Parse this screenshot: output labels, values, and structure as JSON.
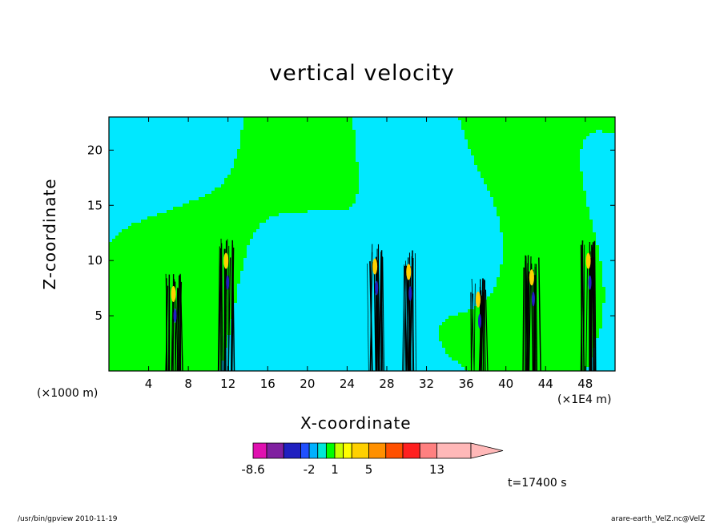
{
  "chart_data": {
    "type": "heatmap",
    "title": "vertical velocity",
    "xlabel": "X-coordinate",
    "ylabel": "Z-coordinate",
    "x_unit_left": "(×1000 m)",
    "x_unit_right": "(×1E4 m)",
    "xlim": [
      0,
      51
    ],
    "ylim": [
      0,
      23
    ],
    "xticks": [
      4,
      8,
      12,
      16,
      20,
      24,
      28,
      32,
      36,
      40,
      44,
      48
    ],
    "yticks": [
      5,
      10,
      15,
      20
    ],
    "time_label": "t=17400 s",
    "colorbar": {
      "levels": [
        -8.6,
        -7,
        -5,
        -3,
        -2,
        -1,
        0,
        1,
        2,
        3,
        5,
        7,
        9,
        11,
        13,
        17
      ],
      "colors": [
        "#e010b0",
        "#8020a0",
        "#2020c0",
        "#2050ff",
        "#00b0ff",
        "#00e8d8",
        "#00ff00",
        "#c8ff00",
        "#ffff00",
        "#ffd000",
        "#ff9000",
        "#ff5000",
        "#ff2020",
        "#ff8080",
        "#ffb8b8"
      ],
      "tick_labels": [
        {
          "value": -8.6,
          "text": "-8.6"
        },
        {
          "value": -2,
          "text": "-2"
        },
        {
          "value": 1,
          "text": "1"
        },
        {
          "value": 5,
          "text": "5"
        },
        {
          "value": 13,
          "text": "13"
        }
      ]
    },
    "field_colors": {
      "positive_weak": "#00ff00",
      "negative_weak": "#00e8ff",
      "contour": "#000000"
    },
    "updraft_columns": [
      {
        "x": 6.5,
        "z_top": 9
      },
      {
        "x": 11.8,
        "z_top": 12
      },
      {
        "x": 26.8,
        "z_top": 11.5
      },
      {
        "x": 30.2,
        "z_top": 11
      },
      {
        "x": 37.2,
        "z_top": 8.5
      },
      {
        "x": 42.6,
        "z_top": 10.5
      },
      {
        "x": 48.3,
        "z_top": 12
      }
    ]
  },
  "footer": {
    "left": "/usr/bin/gpview  2010-11-19",
    "right": "arare-earth_VelZ.nc@VelZ"
  }
}
